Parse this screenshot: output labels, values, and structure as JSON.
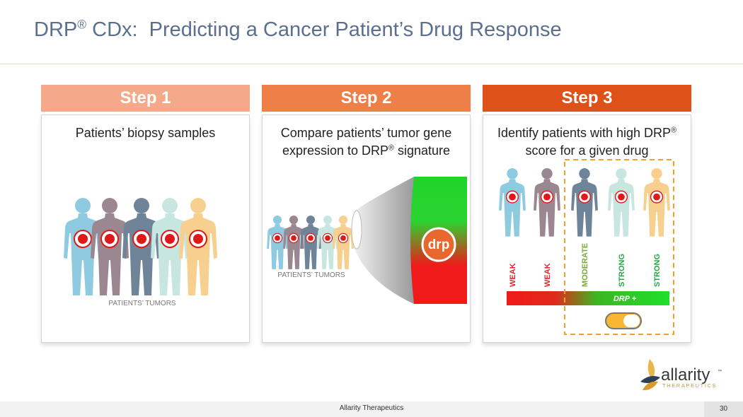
{
  "header": {
    "title": [
      "DRP",
      "®",
      " CDx:  Predicting a Cancer Patient’s Drug Response"
    ]
  },
  "steps": [
    {
      "label": "Step 1",
      "text": [
        [
          "Patients’ biopsy samples"
        ]
      ],
      "caption": "PATIENTS’ TUMORS"
    },
    {
      "label": "Step 2",
      "text": [
        [
          "Compare patients’ tumor gene"
        ],
        [
          "expression to DRP",
          "®",
          " signature"
        ]
      ],
      "caption": "PATIENTS’ TUMORS",
      "badge": "drp"
    },
    {
      "label": "Step 3",
      "text": [
        [
          "Identify patients with high DRP",
          "®"
        ],
        [
          "score for a given drug"
        ]
      ],
      "scores": [
        "WEAK",
        "WEAK",
        "MODERATE",
        "STRONG",
        "STRONG"
      ],
      "bar": "DRP +"
    }
  ],
  "logo": {
    "name": "allarity",
    "mark": "™",
    "tagline": "THERAPEUTICS"
  },
  "footer": {
    "company": "Allarity Therapeutics",
    "page": "30"
  }
}
